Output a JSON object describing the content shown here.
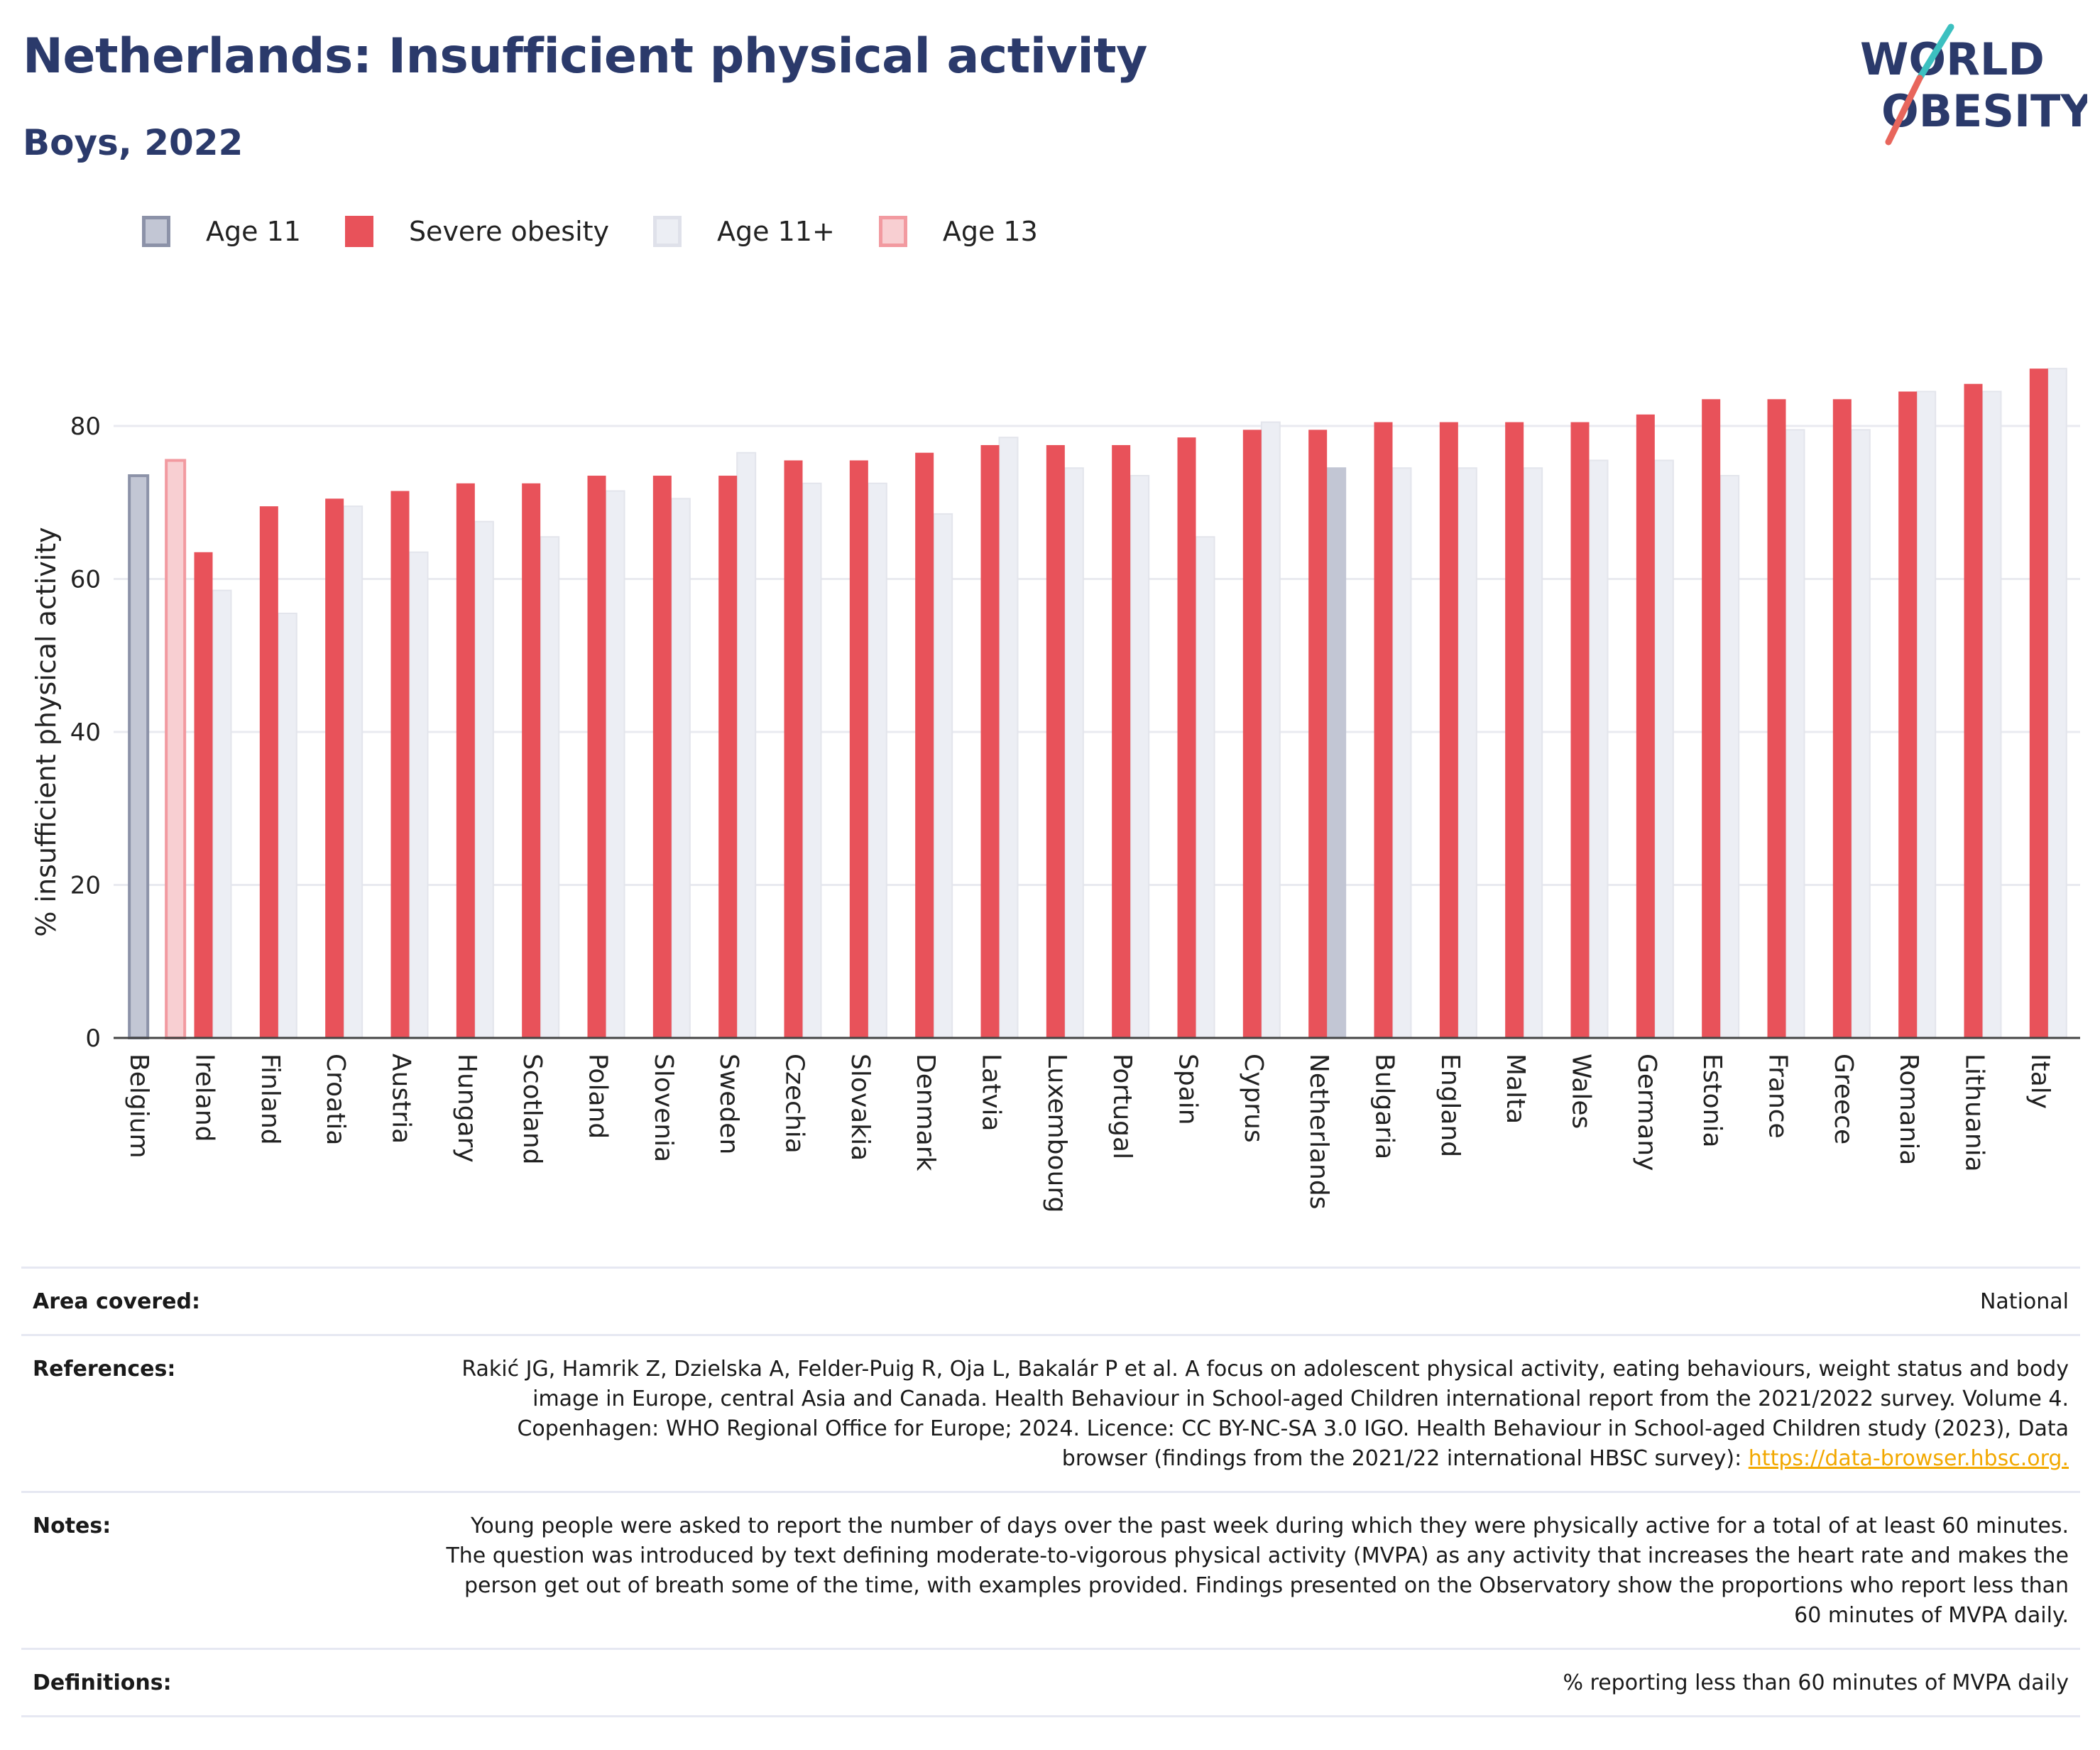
{
  "header": {
    "title": "Netherlands: Insufficient physical activity",
    "subtitle": "Boys, 2022"
  },
  "logo": {
    "line1": "WORLD",
    "line2": "OBESITY"
  },
  "legend": [
    {
      "label": "Age 11",
      "color": "#a0a6ba"
    },
    {
      "label": "Severe obesity",
      "color": "#e8525a"
    },
    {
      "label": "Age 11+",
      "color": "#e7e8ef"
    },
    {
      "label": "Age 13",
      "color": "#f5b9bd"
    }
  ],
  "chart_data": {
    "type": "bar",
    "ylabel": "% insufficient physical activity",
    "xlabel": "",
    "ylim": [
      0,
      90
    ],
    "yticks": [
      0,
      20,
      40,
      60,
      80
    ],
    "grid": true,
    "legend_position": "top-left",
    "colors": {
      "Age 11": "#a0a6ba",
      "Severe obesity": "#e8525a",
      "Age 11+": "#e7e8ef",
      "Age 13": "#f5b9bd"
    },
    "categories": [
      "Belgium",
      "Ireland",
      "Finland",
      "Croatia",
      "Austria",
      "Hungary",
      "Scotland",
      "Poland",
      "Slovenia",
      "Sweden",
      "Czechia",
      "Slovakia",
      "Denmark",
      "Latvia",
      "Luxembourg",
      "Portugal",
      "Spain",
      "Cyprus",
      "Netherlands",
      "Bulgaria",
      "England",
      "Malta",
      "Wales",
      "Germany",
      "Estonia",
      "France",
      "Greece",
      "Romania",
      "Lithuania",
      "Italy"
    ],
    "series": [
      {
        "name": "Age 11",
        "values": [
          73.5,
          null,
          null,
          null,
          null,
          null,
          null,
          null,
          null,
          null,
          null,
          null,
          null,
          null,
          null,
          null,
          null,
          null,
          null,
          null,
          null,
          null,
          null,
          null,
          null,
          null,
          null,
          null,
          null,
          null
        ]
      },
      {
        "name": "Age 13",
        "values": [
          75.5,
          null,
          null,
          null,
          null,
          null,
          null,
          null,
          null,
          null,
          null,
          null,
          null,
          null,
          null,
          null,
          null,
          null,
          null,
          null,
          null,
          null,
          null,
          null,
          null,
          null,
          null,
          null,
          null,
          null
        ]
      },
      {
        "name": "Severe obesity",
        "values": [
          null,
          63.5,
          69.5,
          70.5,
          71.5,
          72.5,
          72.5,
          73.5,
          73.5,
          73.5,
          75.5,
          75.5,
          76.5,
          77.5,
          77.5,
          77.5,
          78.5,
          79.5,
          79.5,
          80.5,
          80.5,
          80.5,
          80.5,
          81.5,
          83.5,
          83.5,
          83.5,
          84.5,
          85.5,
          87.5
        ]
      },
      {
        "name": "Age 11+",
        "values": [
          null,
          58.5,
          55.5,
          69.5,
          63.5,
          67.5,
          65.5,
          71.5,
          70.5,
          76.5,
          72.5,
          72.5,
          68.5,
          78.5,
          74.5,
          73.5,
          65.5,
          80.5,
          74.5,
          74.5,
          74.5,
          74.5,
          75.5,
          75.5,
          73.5,
          79.5,
          79.5,
          84.5,
          84.5,
          87.5
        ]
      }
    ],
    "highlight": "Netherlands"
  },
  "info": [
    {
      "key": "Area covered:",
      "value": "National"
    },
    {
      "key": "References:",
      "value": "Rakić JG, Hamrik Z, Dzielska A, Felder-Puig R, Oja L, Bakalár P et al. A focus on adolescent physical activity, eating behaviours, weight status and body image in Europe, central Asia and Canada. Health Behaviour in School-aged Children international report from the 2021/2022 survey. Volume 4. Copenhagen: WHO Regional Office for Europe; 2024. Licence: CC BY-NC-SA 3.0 IGO. Health Behaviour in School-aged Children study (2023), Data browser (findings from the 2021/22 international HBSC survey): ",
      "link": "https://data-browser.hbsc.org."
    },
    {
      "key": "Notes:",
      "value": "Young people were asked to report the number of days over the past week during which they were physically active for a total of at least 60 minutes. The question was introduced by text defining moderate-to-vigorous physical activity (MVPA) as any activity that increases the heart rate and makes the person get out of breath some of the time, with examples provided. Findings presented on the Observatory show the proportions who report less than 60 minutes of MVPA daily."
    },
    {
      "key": "Definitions:",
      "value": "% reporting less than 60 minutes of MVPA daily"
    }
  ]
}
